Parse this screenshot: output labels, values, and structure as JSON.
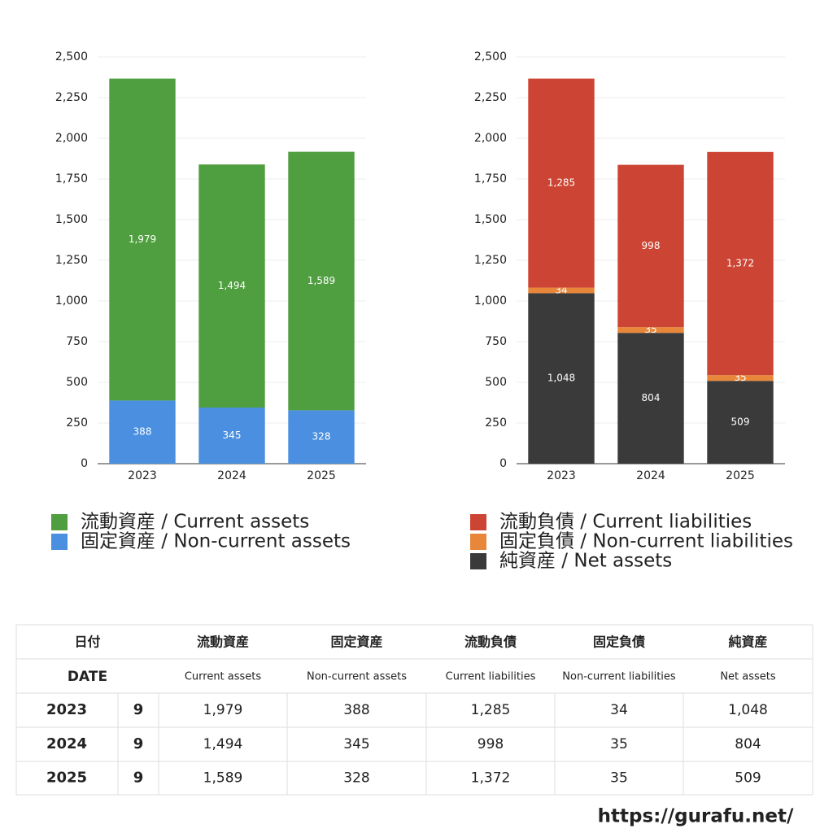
{
  "chart_data": [
    {
      "type": "bar",
      "stacked": true,
      "categories": [
        "2023",
        "2024",
        "2025"
      ],
      "series": [
        {
          "name": "流動資産 / Current assets",
          "color": "#4f9e3f",
          "values": [
            1979,
            1494,
            1589
          ],
          "value_labels": [
            "1,979",
            "1,494",
            "1,589"
          ]
        },
        {
          "name": "固定資産 / Non-current assets",
          "color": "#4a8fe0",
          "values": [
            388,
            345,
            328
          ],
          "value_labels": [
            "388",
            "345",
            "328"
          ]
        }
      ],
      "ylim": [
        0,
        2500
      ],
      "yticks": [
        0,
        250,
        500,
        750,
        {
          "value": 1000,
          "label": "1,000"
        },
        {
          "value": 1250,
          "label": "1,250"
        },
        {
          "value": 1500,
          "label": "1,500"
        },
        {
          "value": 1750,
          "label": "1,750"
        },
        {
          "value": 2000,
          "label": "2,000"
        },
        {
          "value": 2250,
          "label": "2,250"
        },
        {
          "value": 2500,
          "label": "2,500"
        }
      ],
      "grid": true
    },
    {
      "type": "bar",
      "stacked": true,
      "categories": [
        "2023",
        "2024",
        "2025"
      ],
      "series": [
        {
          "name": "流動負債 / Current liabilities",
          "color": "#cc4433",
          "values": [
            1285,
            998,
            1372
          ],
          "value_labels": [
            "1,285",
            "998",
            "1,372"
          ]
        },
        {
          "name": "固定負債 / Non-current liabilities",
          "color": "#e8873a",
          "values": [
            34,
            35,
            35
          ],
          "value_labels": [
            "34",
            "35",
            "35"
          ]
        },
        {
          "name": "純資産 / Net assets",
          "color": "#3a3a3a",
          "values": [
            1048,
            804,
            509
          ],
          "value_labels": [
            "1,048",
            "804",
            "509"
          ]
        }
      ],
      "ylim": [
        0,
        2500
      ],
      "yticks": [
        0,
        250,
        500,
        750,
        {
          "value": 1000,
          "label": "1,000"
        },
        {
          "value": 1250,
          "label": "1,250"
        },
        {
          "value": 1500,
          "label": "1,500"
        },
        {
          "value": 1750,
          "label": "1,750"
        },
        {
          "value": 2000,
          "label": "2,000"
        },
        {
          "value": 2250,
          "label": "2,250"
        },
        {
          "value": 2500,
          "label": "2,500"
        }
      ],
      "grid": true
    }
  ],
  "table": {
    "header": [
      "日付",
      "流動資産",
      "固定資産",
      "流動負債",
      "固定負債",
      "純資産"
    ],
    "subheader": [
      "DATE",
      "Current assets",
      "Non-current assets",
      "Current liabilities",
      "Non-current liabilities",
      "Net assets"
    ],
    "rows": [
      [
        "2023",
        "9",
        "1,979",
        "388",
        "1,285",
        "34",
        "1,048"
      ],
      [
        "2024",
        "9",
        "1,494",
        "345",
        "998",
        "35",
        "804"
      ],
      [
        "2025",
        "9",
        "1,589",
        "328",
        "1,372",
        "35",
        "509"
      ]
    ]
  },
  "footer": "https://gurafu.net/"
}
